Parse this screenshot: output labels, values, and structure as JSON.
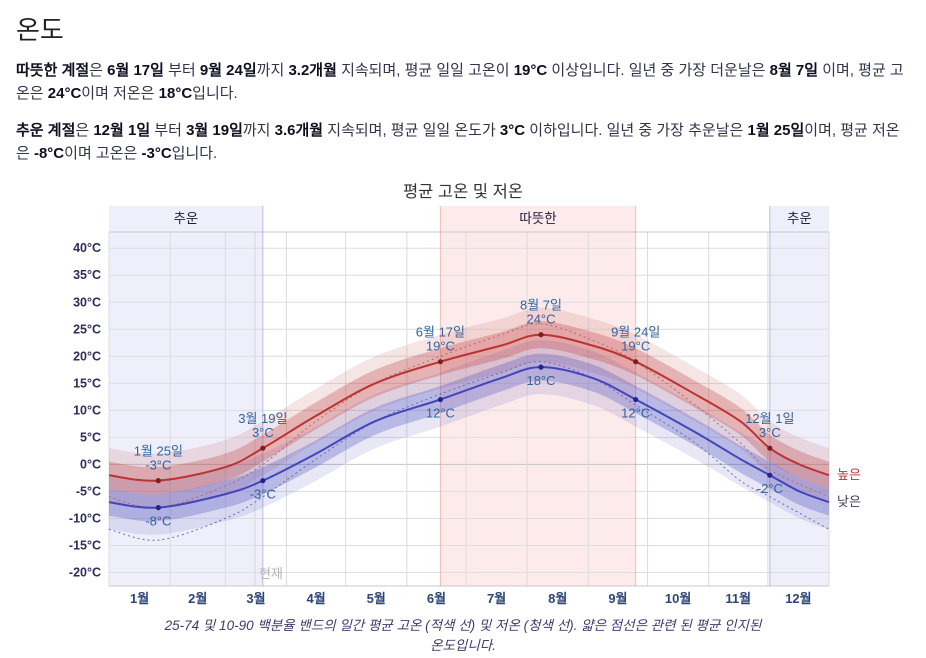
{
  "page": {
    "title": "온도"
  },
  "paragraphs": {
    "warm": [
      {
        "t": "따뜻한 계절",
        "b": true
      },
      {
        "t": "은 ",
        "b": false
      },
      {
        "t": "6월 17일",
        "b": true
      },
      {
        "t": " 부터 ",
        "b": false
      },
      {
        "t": "9월 24일",
        "b": true
      },
      {
        "t": "까지 ",
        "b": false
      },
      {
        "t": "3.2개월",
        "b": true
      },
      {
        "t": " 지속되며, 평균 일일 고온이 ",
        "b": false
      },
      {
        "t": "19°C",
        "b": true
      },
      {
        "t": " 이상입니다. 일년 중 가장 더운날은 ",
        "b": false
      },
      {
        "t": "8월 7일",
        "b": true
      },
      {
        "t": " 이며, 평균 고온은 ",
        "b": false
      },
      {
        "t": "24°C",
        "b": true
      },
      {
        "t": "이며 저온은 ",
        "b": false
      },
      {
        "t": "18°C",
        "b": true
      },
      {
        "t": "입니다.",
        "b": false
      }
    ],
    "cold": [
      {
        "t": "추운 계절",
        "b": true
      },
      {
        "t": "은 ",
        "b": false
      },
      {
        "t": "12월 1일",
        "b": true
      },
      {
        "t": " 부터 ",
        "b": false
      },
      {
        "t": "3월 19일",
        "b": true
      },
      {
        "t": "까지 ",
        "b": false
      },
      {
        "t": "3.6개월",
        "b": true
      },
      {
        "t": " 지속되며, 평균 일일 온도가 ",
        "b": false
      },
      {
        "t": "3°C",
        "b": true
      },
      {
        "t": " 이하입니다. 일년 중 가장 추운날은 ",
        "b": false
      },
      {
        "t": "1월 25일",
        "b": true
      },
      {
        "t": "이며, 평균 저온은 ",
        "b": false
      },
      {
        "t": "-8°C",
        "b": true
      },
      {
        "t": "이며 고온은 ",
        "b": false
      },
      {
        "t": "-3°C",
        "b": true
      },
      {
        "t": "입니다.",
        "b": false
      }
    ]
  },
  "chart_data": {
    "type": "line",
    "title": "평균 고온 및 저온",
    "caption": "25-74 및 10-90 백분율 밴드의 일간 평균 고온 (적색 선) 및 저온 (청색 선). 얇은 점선은 관련 된 평균 인지된 온도입니다.",
    "x_months": [
      "1월",
      "2월",
      "3월",
      "4월",
      "5월",
      "6월",
      "7월",
      "8월",
      "9월",
      "10월",
      "11월",
      "12월"
    ],
    "month_boundaries": [
      0,
      31,
      59,
      90,
      120,
      151,
      181,
      212,
      243,
      273,
      304,
      334,
      365
    ],
    "y_ticks": [
      {
        "v": 40,
        "label": "40°C"
      },
      {
        "v": 35,
        "label": "35°C"
      },
      {
        "v": 30,
        "label": "30°C"
      },
      {
        "v": 25,
        "label": "25°C"
      },
      {
        "v": 20,
        "label": "20°C"
      },
      {
        "v": 15,
        "label": "15°C"
      },
      {
        "v": 10,
        "label": "10°C"
      },
      {
        "v": 5,
        "label": "5°C"
      },
      {
        "v": 0,
        "label": "0°C"
      },
      {
        "v": -5,
        "label": "-5°C"
      },
      {
        "v": -10,
        "label": "-10°C"
      },
      {
        "v": -15,
        "label": "-15°C"
      },
      {
        "v": -20,
        "label": "-20°C"
      }
    ],
    "ylim": [
      -22.5,
      43
    ],
    "axis_color": "#2d2d5e",
    "month_color": "#2d4577",
    "annotation_color": "#31639c",
    "season_label_color": "#1f1f3d",
    "seasons": [
      {
        "label": "추운",
        "start_day": 0,
        "end_day": 78,
        "fill": "rgba(100,100,220,0.10)",
        "edge": "rgba(100,100,200,0.40)"
      },
      {
        "label": "따뜻한",
        "start_day": 168,
        "end_day": 267,
        "fill": "rgba(240,120,120,0.15)",
        "edge": "rgba(230,120,120,0.45)"
      },
      {
        "label": "추운",
        "start_day": 335,
        "end_day": 365,
        "fill": "rgba(100,100,220,0.10)",
        "edge": "rgba(100,100,200,0.40)"
      }
    ],
    "series": [
      {
        "name": "높은",
        "role": "high",
        "color": "#bb3333",
        "dot_color": "#7d1f1f",
        "label_color": "#bb3333",
        "band_inner": 2.5,
        "band_outer": 5,
        "band_inner_color": "rgba(187,51,51,0.28)",
        "band_outer_color": "rgba(187,51,51,0.13)",
        "points": [
          [
            0,
            -2
          ],
          [
            25,
            -3
          ],
          [
            59,
            -0.5
          ],
          [
            78,
            3
          ],
          [
            105,
            9
          ],
          [
            135,
            15
          ],
          [
            168,
            19
          ],
          [
            199,
            22
          ],
          [
            219,
            24
          ],
          [
            245,
            22
          ],
          [
            267,
            19
          ],
          [
            297,
            13
          ],
          [
            320,
            8
          ],
          [
            335,
            3
          ],
          [
            350,
            0
          ],
          [
            365,
            -2
          ]
        ]
      },
      {
        "name": "낮은",
        "role": "low",
        "color": "#4444bb",
        "dot_color": "#252585",
        "label_color": "#3c3c50",
        "band_inner": 2.5,
        "band_outer": 5,
        "band_inner_color": "rgba(68,68,187,0.28)",
        "band_outer_color": "rgba(68,68,187,0.13)",
        "points": [
          [
            0,
            -7
          ],
          [
            25,
            -8
          ],
          [
            59,
            -5.5
          ],
          [
            78,
            -3
          ],
          [
            105,
            2
          ],
          [
            135,
            8
          ],
          [
            168,
            12
          ],
          [
            199,
            16
          ],
          [
            219,
            18
          ],
          [
            245,
            16
          ],
          [
            267,
            12
          ],
          [
            297,
            6
          ],
          [
            320,
            1
          ],
          [
            335,
            -2
          ],
          [
            350,
            -5
          ],
          [
            365,
            -7
          ]
        ]
      }
    ],
    "dotted_series": [
      {
        "name": "perceived-high",
        "color": "#b56a6a",
        "points": [
          [
            0,
            -6
          ],
          [
            25,
            -8
          ],
          [
            59,
            -4
          ],
          [
            78,
            0
          ],
          [
            105,
            8
          ],
          [
            135,
            15
          ],
          [
            168,
            20
          ],
          [
            199,
            24
          ],
          [
            219,
            26
          ],
          [
            245,
            23
          ],
          [
            267,
            19
          ],
          [
            297,
            11
          ],
          [
            320,
            4
          ],
          [
            335,
            -1
          ],
          [
            365,
            -6
          ]
        ]
      },
      {
        "name": "perceived-low",
        "color": "#6a6ab5",
        "points": [
          [
            0,
            -12
          ],
          [
            25,
            -14
          ],
          [
            59,
            -10
          ],
          [
            78,
            -6
          ],
          [
            105,
            1
          ],
          [
            135,
            8
          ],
          [
            168,
            13
          ],
          [
            199,
            17
          ],
          [
            219,
            19
          ],
          [
            245,
            16
          ],
          [
            267,
            11
          ],
          [
            297,
            4
          ],
          [
            320,
            -3
          ],
          [
            335,
            -6
          ],
          [
            365,
            -12
          ]
        ]
      }
    ],
    "annotations": [
      {
        "day": 25,
        "value": -3,
        "series": "high",
        "date_label": "1월 25일",
        "value_label": "-3°C",
        "position": "above"
      },
      {
        "day": 25,
        "value": -8,
        "series": "low",
        "value_label": "-8°C",
        "position": "below"
      },
      {
        "day": 78,
        "value": 3,
        "series": "high",
        "date_label": "3월 19일",
        "value_label": "3°C",
        "position": "above"
      },
      {
        "day": 78,
        "value": -3,
        "series": "low",
        "value_label": "-3°C",
        "position": "below"
      },
      {
        "day": 168,
        "value": 19,
        "series": "high",
        "date_label": "6월 17일",
        "value_label": "19°C",
        "position": "above"
      },
      {
        "day": 168,
        "value": 12,
        "series": "low",
        "value_label": "12°C",
        "position": "below"
      },
      {
        "day": 219,
        "value": 24,
        "series": "high",
        "date_label": "8월 7일",
        "value_label": "24°C",
        "position": "above"
      },
      {
        "day": 219,
        "value": 18,
        "series": "low",
        "value_label": "18°C",
        "position": "below"
      },
      {
        "day": 267,
        "value": 19,
        "series": "high",
        "date_label": "9월 24일",
        "value_label": "19°C",
        "position": "above"
      },
      {
        "day": 267,
        "value": 12,
        "series": "low",
        "value_label": "12°C",
        "position": "below"
      },
      {
        "day": 335,
        "value": 3,
        "series": "high",
        "date_label": "12월 1일",
        "value_label": "3°C",
        "position": "above"
      },
      {
        "day": 335,
        "value": -2,
        "series": "low",
        "value_label": "-2°C",
        "position": "below"
      }
    ],
    "current": {
      "label": "현재",
      "day": 74
    }
  }
}
